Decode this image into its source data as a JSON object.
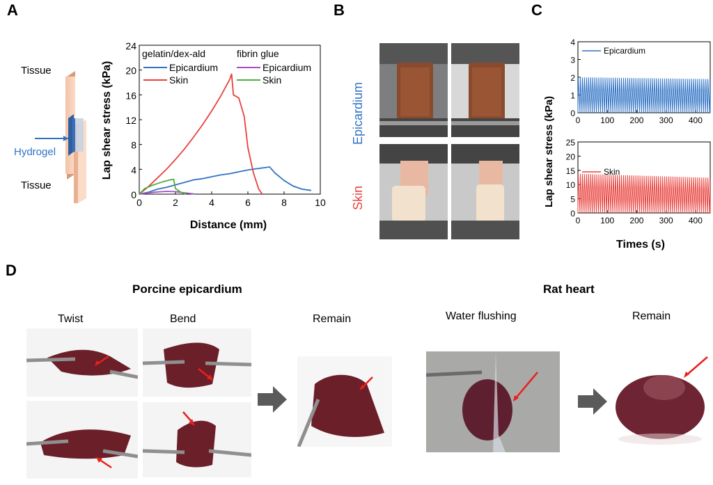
{
  "panels": {
    "a": "A",
    "b": "B",
    "c": "C",
    "d": "D"
  },
  "schematic": {
    "tissue_top": "Tissue",
    "tissue_bottom": "Tissue",
    "hydrogel": "Hydrogel"
  },
  "panel_b": {
    "row_epicardium": "Epicardium",
    "row_skin": "Skin"
  },
  "panel_d": {
    "group_left": "Porcine epicardium",
    "group_right": "Rat heart",
    "twist": "Twist",
    "bend": "Bend",
    "remain_left": "Remain",
    "water_flushing": "Water flushing",
    "remain_right": "Remain"
  },
  "colors": {
    "blue": "#2f72c4",
    "red": "#e8403b",
    "purple": "#a64dc1",
    "green": "#4cae3f",
    "arrow": "#e8201d",
    "tissue": "#6b1f28"
  },
  "chart_data": [
    {
      "type": "line",
      "xlabel": "Distance (mm)",
      "ylabel": "Lap shear stress (kPa)",
      "xlim": [
        0,
        10
      ],
      "ylim": [
        0,
        24
      ],
      "xticks": [
        0,
        2,
        4,
        6,
        8,
        10
      ],
      "yticks": [
        0,
        4,
        8,
        12,
        16,
        20,
        24
      ],
      "legend": {
        "group1_title": "gelatin/dex-ald",
        "group2_title": "fibrin glue"
      },
      "series": [
        {
          "name": "Epicardium",
          "group": "gelatin/dex-ald",
          "color": "#2f72c4",
          "x": [
            0,
            0.5,
            1.0,
            1.5,
            2.0,
            2.5,
            3.0,
            3.5,
            4.0,
            4.5,
            5.0,
            5.5,
            6.0,
            6.5,
            7.0,
            7.2,
            7.5,
            8.0,
            8.5,
            9.0,
            9.5
          ],
          "y": [
            0,
            0.3,
            0.8,
            1.1,
            1.5,
            1.9,
            2.3,
            2.5,
            2.8,
            3.1,
            3.3,
            3.6,
            3.9,
            4.1,
            4.3,
            4.4,
            3.4,
            2.2,
            1.3,
            0.8,
            0.6
          ]
        },
        {
          "name": "Skin",
          "group": "gelatin/dex-ald",
          "color": "#e8403b",
          "x": [
            0,
            0.5,
            1.0,
            1.5,
            2.0,
            2.5,
            3.0,
            3.5,
            4.0,
            4.5,
            5.0,
            5.1,
            5.2,
            5.5,
            5.8,
            6.0,
            6.3,
            6.6,
            6.8
          ],
          "y": [
            0,
            1.2,
            2.6,
            4.0,
            5.6,
            7.3,
            9.2,
            11.2,
            13.4,
            15.8,
            18.5,
            19.4,
            16.0,
            15.5,
            12.5,
            7.5,
            3.5,
            0.8,
            0
          ]
        },
        {
          "name": "Epicardium",
          "group": "fibrin glue",
          "color": "#a64dc1",
          "x": [
            0,
            0.5,
            1.0,
            1.5,
            2.0,
            2.5,
            3.0
          ],
          "y": [
            0,
            0.2,
            0.35,
            0.45,
            0.4,
            0.2,
            0.05
          ]
        },
        {
          "name": "Skin",
          "group": "fibrin glue",
          "color": "#4cae3f",
          "x": [
            0,
            0.3,
            0.7,
            1.0,
            1.3,
            1.7,
            1.9,
            2.0,
            2.3,
            2.6
          ],
          "y": [
            0,
            0.9,
            1.4,
            1.7,
            2.0,
            2.3,
            2.4,
            0.9,
            0.3,
            0
          ]
        }
      ]
    },
    {
      "type": "line",
      "xlabel": "Times (s)",
      "ylabel": "Lap shear stress (kPa)",
      "panel": "C-top",
      "xlim": [
        0,
        450
      ],
      "ylim": [
        0,
        4
      ],
      "xticks": [
        0,
        100,
        200,
        300,
        400
      ],
      "yticks": [
        0,
        1,
        2,
        3,
        4
      ],
      "series": [
        {
          "name": "Epicardium",
          "color": "#2f72c4",
          "period_s": 7,
          "peak_start": 2.0,
          "peak_end": 1.9
        }
      ]
    },
    {
      "type": "line",
      "xlabel": "Times (s)",
      "ylabel": "Lap shear stress (kPa)",
      "panel": "C-bottom",
      "xlim": [
        0,
        450
      ],
      "ylim": [
        0,
        25
      ],
      "xticks": [
        0,
        100,
        200,
        300,
        400
      ],
      "yticks": [
        0,
        5,
        10,
        15,
        20,
        25
      ],
      "series": [
        {
          "name": "Skin",
          "color": "#e8403b",
          "period_s": 7,
          "peak_start": 13.8,
          "peak_end": 12.4
        }
      ]
    }
  ]
}
